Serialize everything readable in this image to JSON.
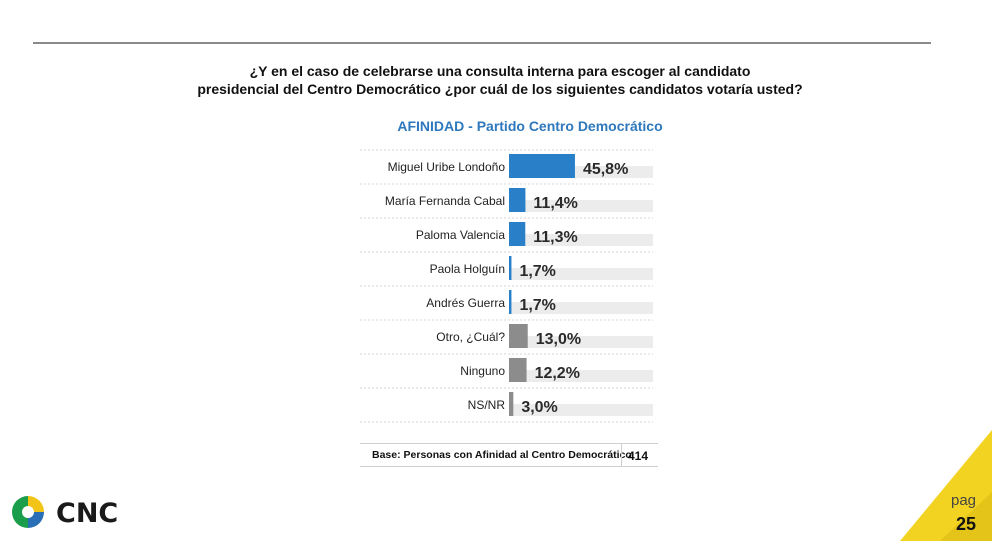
{
  "question": {
    "line1": "¿Y en el caso de celebrarse una consulta interna para escoger al candidato",
    "line2": "presidencial del Centro Democrático ¿por cuál de los siguientes candidatos votaría usted?"
  },
  "chart_data": {
    "type": "bar",
    "orientation": "horizontal",
    "title": "AFINIDAD - Partido Centro Democrático",
    "categories": [
      "Miguel Uribe Londoño",
      "María Fernanda Cabal",
      "Paloma Valencia",
      "Paola Holguín",
      "Andrés Guerra",
      "Otro, ¿Cuál?",
      "Ninguno",
      "NS/NR"
    ],
    "values": [
      45.8,
      11.4,
      11.3,
      1.7,
      1.7,
      13.0,
      12.2,
      3.0
    ],
    "value_labels": [
      "45,8%",
      "11,4%",
      "11,3%",
      "1,7%",
      "1,7%",
      "13,0%",
      "12,2%",
      "3,0%"
    ],
    "bar_colors": [
      "#2980c8",
      "#2980c8",
      "#2980c8",
      "#2980c8",
      "#2980c8",
      "#8c8c8c",
      "#8c8c8c",
      "#8c8c8c"
    ],
    "xlim": [
      0,
      100
    ],
    "background_bar_color": "#ececec",
    "grid": false,
    "legend": "none"
  },
  "base": {
    "label": "Base: Personas con Afinidad al Centro Democrático",
    "value": "414"
  },
  "logo": {
    "text": "CNC",
    "colors": [
      "#1b9e4b",
      "#2a6fb5",
      "#f2c418"
    ]
  },
  "page": {
    "label": "pag",
    "number": "25"
  },
  "colors": {
    "accent": "#2e78bd",
    "corner": "#f2d321"
  }
}
